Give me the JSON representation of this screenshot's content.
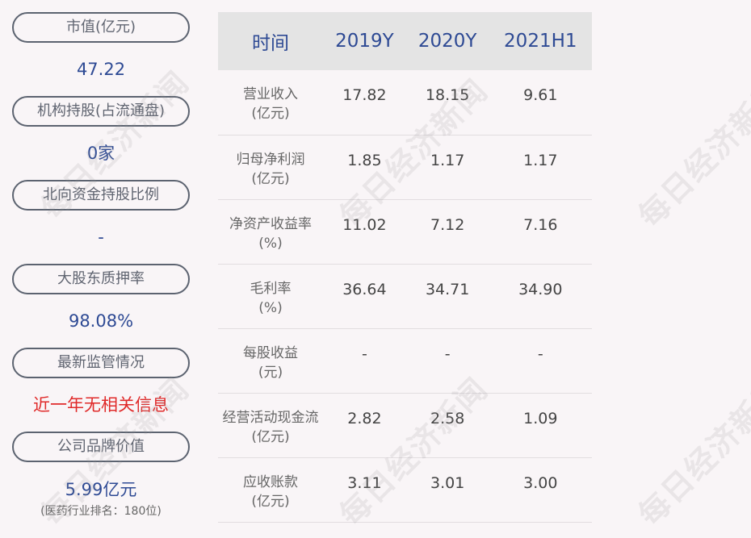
{
  "left_panel": {
    "items": [
      {
        "label": "市值(亿元)",
        "value": "47.22"
      },
      {
        "label": "机构持股(占流通盘)",
        "value": "0家"
      },
      {
        "label": "北向资金持股比例",
        "value": "-"
      },
      {
        "label": "大股东质押率",
        "value": "98.08%"
      },
      {
        "label": "最新监管情况",
        "value": "近一年无相关信息"
      },
      {
        "label": "公司品牌价值",
        "value": "5.99亿元",
        "note": "(医药行业排名：180位)"
      }
    ]
  },
  "table": {
    "headers": [
      "时间",
      "2019Y",
      "2020Y",
      "2021H1"
    ],
    "rows": [
      {
        "label1": "营业收入",
        "label2": "(亿元)",
        "values": [
          "17.82",
          "18.15",
          "9.61"
        ]
      },
      {
        "label1": "归母净利润",
        "label2": "(亿元)",
        "values": [
          "1.85",
          "1.17",
          "1.17"
        ]
      },
      {
        "label1": "净资产收益率",
        "label2": "(%)",
        "values": [
          "11.02",
          "7.12",
          "7.16"
        ]
      },
      {
        "label1": "毛利率",
        "label2": "(%)",
        "values": [
          "36.64",
          "34.71",
          "34.90"
        ]
      },
      {
        "label1": "每股收益",
        "label2": "(元)",
        "values": [
          "-",
          "-",
          "-"
        ]
      },
      {
        "label1": "经营活动现金流",
        "label2": "(亿元)",
        "values": [
          "2.82",
          "2.58",
          "1.09"
        ]
      },
      {
        "label1": "应收账款",
        "label2": "(亿元)",
        "values": [
          "3.11",
          "3.01",
          "3.00"
        ]
      }
    ]
  },
  "watermark": "每日经济新闻",
  "colors": {
    "accent_blue": "#2e4a94",
    "alert_red": "#e02a2a",
    "header_bg": "#e4e4e4"
  }
}
